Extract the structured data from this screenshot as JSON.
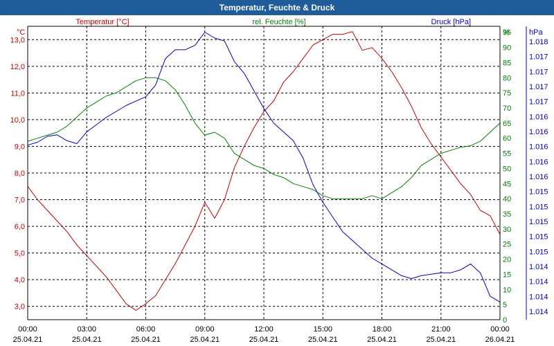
{
  "chart_data": {
    "type": "line",
    "title": "Temperatur, Feuchte & Druck",
    "x_ticks": [
      {
        "time": "00:00",
        "date": "25.04.21"
      },
      {
        "time": "03:00",
        "date": "25.04.21"
      },
      {
        "time": "06:00",
        "date": "25.04.21"
      },
      {
        "time": "09:00",
        "date": "25.04.21"
      },
      {
        "time": "12:00",
        "date": "25.04.21"
      },
      {
        "time": "15:00",
        "date": "25.04.21"
      },
      {
        "time": "18:00",
        "date": "25.04.21"
      },
      {
        "time": "21:00",
        "date": "25.04.21"
      },
      {
        "time": "00:00",
        "date": "26.04.21"
      }
    ],
    "x_range_hours": [
      0,
      24
    ],
    "axes": {
      "temperature": {
        "label": "Temperatur [°C]",
        "unit": "°C",
        "range": [
          2.5,
          13.5
        ],
        "ticks": [
          "3,0",
          "4,0",
          "5,0",
          "6,0",
          "7,0",
          "8,0",
          "9,0",
          "10,0",
          "11,0",
          "12,0",
          "13,0"
        ],
        "tick_values": [
          3,
          4,
          5,
          6,
          7,
          8,
          9,
          10,
          11,
          12,
          13
        ],
        "color": "#c00000"
      },
      "humidity": {
        "label": "rel. Feuchte [%]",
        "unit": "%",
        "range": [
          0,
          97
        ],
        "ticks": [
          "0",
          "5",
          "10",
          "15",
          "20",
          "25",
          "30",
          "35",
          "40",
          "45",
          "50",
          "55",
          "60",
          "65",
          "70",
          "75",
          "80",
          "85",
          "90",
          "95"
        ],
        "tick_values": [
          0,
          5,
          10,
          15,
          20,
          25,
          30,
          35,
          40,
          45,
          50,
          55,
          60,
          65,
          70,
          75,
          80,
          85,
          90,
          95
        ],
        "color": "#008000"
      },
      "pressure": {
        "label": "Druck [hPa]",
        "unit": "hPa",
        "range": [
          0,
          1
        ],
        "ticks": [
          "1.014",
          "1.014",
          "1.014",
          "1.014",
          "1.015",
          "1.015",
          "1.015",
          "1.015",
          "1.015",
          "1.016",
          "1.016",
          "1.016",
          "1.016",
          "1.016",
          "1.017",
          "1.017",
          "1.017",
          "1.017",
          "1.018"
        ],
        "color": "#0000c0"
      }
    },
    "series": [
      {
        "name": "Temperatur",
        "axis": "temperature",
        "color": "#c00000",
        "points": [
          [
            0,
            7.5
          ],
          [
            0.5,
            7.0
          ],
          [
            1,
            6.6
          ],
          [
            1.5,
            6.2
          ],
          [
            2,
            5.8
          ],
          [
            2.5,
            5.3
          ],
          [
            3,
            4.9
          ],
          [
            3.5,
            4.5
          ],
          [
            4,
            4.1
          ],
          [
            4.5,
            3.6
          ],
          [
            5,
            3.1
          ],
          [
            5.5,
            2.85
          ],
          [
            6,
            3.1
          ],
          [
            6.5,
            3.4
          ],
          [
            7,
            4.0
          ],
          [
            7.5,
            4.6
          ],
          [
            8,
            5.3
          ],
          [
            8.5,
            6.0
          ],
          [
            9,
            6.9
          ],
          [
            9.5,
            6.3
          ],
          [
            10,
            7.0
          ],
          [
            10.5,
            8.2
          ],
          [
            11,
            9.0
          ],
          [
            11.5,
            9.7
          ],
          [
            12,
            10.3
          ],
          [
            12.5,
            10.7
          ],
          [
            13,
            11.4
          ],
          [
            13.5,
            11.8
          ],
          [
            14,
            12.3
          ],
          [
            14.5,
            12.8
          ],
          [
            15,
            13.0
          ],
          [
            15.5,
            13.2
          ],
          [
            16,
            13.2
          ],
          [
            16.5,
            13.3
          ],
          [
            17,
            12.6
          ],
          [
            17.5,
            12.7
          ],
          [
            18,
            12.3
          ],
          [
            18.5,
            11.8
          ],
          [
            19,
            11.2
          ],
          [
            19.5,
            10.5
          ],
          [
            20,
            9.7
          ],
          [
            20.5,
            9.1
          ],
          [
            21,
            8.6
          ],
          [
            21.5,
            8.1
          ],
          [
            22,
            7.6
          ],
          [
            22.5,
            7.2
          ],
          [
            23,
            6.6
          ],
          [
            23.5,
            6.4
          ],
          [
            24,
            5.7
          ]
        ]
      },
      {
        "name": "rel. Feuchte",
        "axis": "humidity",
        "color": "#008000",
        "points": [
          [
            0,
            59
          ],
          [
            0.5,
            60
          ],
          [
            1,
            61
          ],
          [
            1.5,
            62
          ],
          [
            2,
            64
          ],
          [
            2.5,
            67
          ],
          [
            3,
            70
          ],
          [
            3.5,
            72
          ],
          [
            4,
            74
          ],
          [
            4.5,
            75
          ],
          [
            5,
            77
          ],
          [
            5.5,
            79
          ],
          [
            6,
            80
          ],
          [
            6.5,
            80
          ],
          [
            7,
            79
          ],
          [
            7.5,
            76
          ],
          [
            8,
            71
          ],
          [
            8.5,
            65
          ],
          [
            9,
            61
          ],
          [
            9.5,
            62
          ],
          [
            10,
            60
          ],
          [
            10.5,
            55
          ],
          [
            11,
            53
          ],
          [
            11.5,
            51
          ],
          [
            12,
            50
          ],
          [
            12.5,
            48
          ],
          [
            13,
            47
          ],
          [
            13.5,
            45
          ],
          [
            14,
            44
          ],
          [
            14.5,
            43
          ],
          [
            15,
            41
          ],
          [
            15.5,
            40
          ],
          [
            16,
            40
          ],
          [
            16.5,
            40
          ],
          [
            17,
            40
          ],
          [
            17.5,
            41
          ],
          [
            18,
            40
          ],
          [
            18.5,
            42
          ],
          [
            19,
            44
          ],
          [
            19.5,
            47
          ],
          [
            20,
            51
          ],
          [
            20.5,
            53
          ],
          [
            21,
            55
          ],
          [
            21.5,
            56
          ],
          [
            22,
            57
          ],
          [
            22.5,
            57.5
          ],
          [
            23,
            59
          ],
          [
            23.5,
            62
          ],
          [
            24,
            65
          ]
        ]
      },
      {
        "name": "Druck",
        "axis": "pressure",
        "color": "#0000c0",
        "points": [
          [
            0,
            0.595
          ],
          [
            0.5,
            0.605
          ],
          [
            1,
            0.625
          ],
          [
            1.5,
            0.63
          ],
          [
            2,
            0.61
          ],
          [
            2.5,
            0.6
          ],
          [
            3,
            0.64
          ],
          [
            3.5,
            0.665
          ],
          [
            4,
            0.69
          ],
          [
            4.5,
            0.71
          ],
          [
            5,
            0.73
          ],
          [
            5.5,
            0.745
          ],
          [
            6,
            0.76
          ],
          [
            6.5,
            0.8
          ],
          [
            7,
            0.89
          ],
          [
            7.5,
            0.92
          ],
          [
            8,
            0.92
          ],
          [
            8.5,
            0.935
          ],
          [
            9,
            0.98
          ],
          [
            9.5,
            0.96
          ],
          [
            10,
            0.95
          ],
          [
            10.5,
            0.88
          ],
          [
            11,
            0.84
          ],
          [
            11.5,
            0.78
          ],
          [
            12,
            0.72
          ],
          [
            12.5,
            0.67
          ],
          [
            13,
            0.64
          ],
          [
            13.5,
            0.61
          ],
          [
            14,
            0.55
          ],
          [
            14.5,
            0.46
          ],
          [
            15,
            0.4
          ],
          [
            15.5,
            0.35
          ],
          [
            16,
            0.3
          ],
          [
            16.5,
            0.27
          ],
          [
            17,
            0.24
          ],
          [
            17.5,
            0.21
          ],
          [
            18,
            0.19
          ],
          [
            18.5,
            0.17
          ],
          [
            19,
            0.15
          ],
          [
            19.5,
            0.14
          ],
          [
            20,
            0.15
          ],
          [
            20.5,
            0.155
          ],
          [
            21,
            0.16
          ],
          [
            21.5,
            0.16
          ],
          [
            22,
            0.17
          ],
          [
            22.5,
            0.19
          ],
          [
            23,
            0.16
          ],
          [
            23.5,
            0.08
          ],
          [
            24,
            0.06
          ]
        ]
      }
    ],
    "grid": true,
    "legend": "top"
  }
}
